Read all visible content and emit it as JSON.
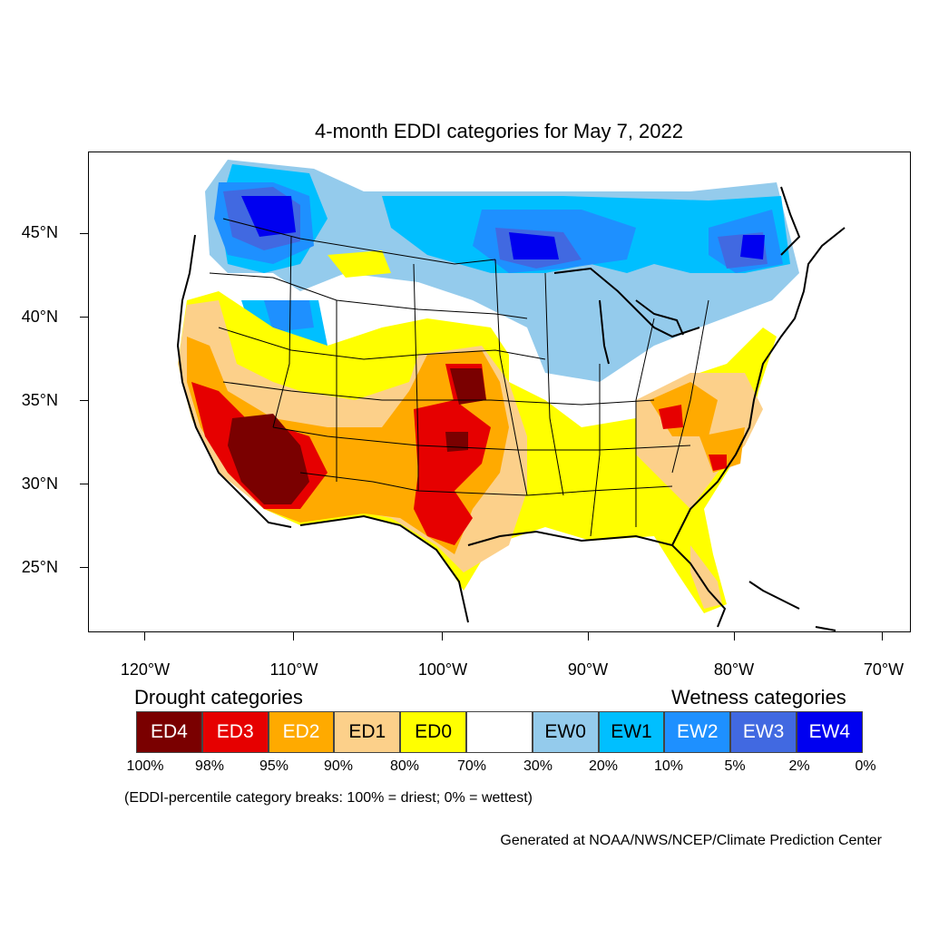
{
  "title": "4-month EDDI categories for May 7, 2022",
  "axes": {
    "lat_labels": [
      "45°N",
      "40°N",
      "35°N",
      "30°N",
      "25°N"
    ],
    "lon_labels": [
      "120°W",
      "110°W",
      "100°W",
      "90°W",
      "80°W",
      "70°W"
    ]
  },
  "legend": {
    "drought_heading": "Drought categories",
    "wetness_heading": "Wetness categories",
    "categories": [
      {
        "label": "ED4",
        "color": "#7a0000",
        "text_color": "#ffffff"
      },
      {
        "label": "ED3",
        "color": "#e60000",
        "text_color": "#ffffff"
      },
      {
        "label": "ED2",
        "color": "#ffaa00",
        "text_color": "#ffffff"
      },
      {
        "label": "ED1",
        "color": "#fcd08a",
        "text_color": "#000000"
      },
      {
        "label": "ED0",
        "color": "#ffff00",
        "text_color": "#000000"
      },
      {
        "label": "",
        "color": "#ffffff",
        "text_color": "#000000"
      },
      {
        "label": "EW0",
        "color": "#94cbec",
        "text_color": "#000000"
      },
      {
        "label": "EW1",
        "color": "#00bfff",
        "text_color": "#000000"
      },
      {
        "label": "EW2",
        "color": "#1e90ff",
        "text_color": "#ffffff"
      },
      {
        "label": "EW3",
        "color": "#4169e1",
        "text_color": "#ffffff"
      },
      {
        "label": "EW4",
        "color": "#0000f0",
        "text_color": "#ffffff"
      }
    ],
    "breaks": [
      "100%",
      "98%",
      "95%",
      "90%",
      "80%",
      "70%",
      "30%",
      "20%",
      "10%",
      "5%",
      "2%",
      "0%"
    ]
  },
  "note": "(EDDI-percentile category breaks: 100% = driest; 0% = wettest)",
  "credit": "Generated at NOAA/NWS/NCEP/Climate Prediction Center"
}
